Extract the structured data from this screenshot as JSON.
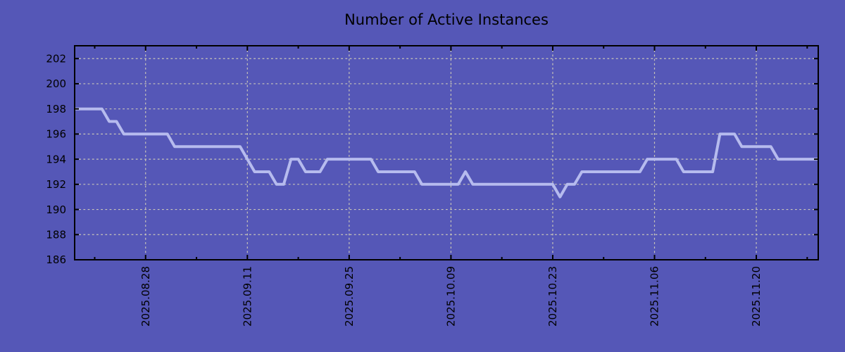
{
  "chart_data": {
    "type": "line",
    "title": "Number of Active Instances",
    "xlabel": "",
    "ylabel": "",
    "legend_position": "none",
    "grid": "dashed, light gray, at labeled ticks",
    "ylim": [
      186,
      203
    ],
    "y_tick_labels": [
      "202",
      "200",
      "198",
      "196",
      "194",
      "192",
      "190",
      "188",
      "186"
    ],
    "x_tick_labels": [
      "2025.08.28",
      "2025.09.11",
      "2025.09.25",
      "2025.10.09",
      "2025.10.23",
      "2025.11.06",
      "2025.11.20"
    ],
    "x_cadence": "daily",
    "first_tick_date": "2025-08-21",
    "tick_interval_days": 7,
    "label_interval_days": 14,
    "colors": {
      "background": "#5557b7",
      "line": "#b6bbee",
      "grid": "#c9c6b8",
      "axis": "#000000",
      "text": "#000000"
    },
    "dates": [
      "2025-08-18",
      "2025-08-19",
      "2025-08-20",
      "2025-08-21",
      "2025-08-22",
      "2025-08-23",
      "2025-08-24",
      "2025-08-25",
      "2025-08-26",
      "2025-08-27",
      "2025-08-28",
      "2025-08-29",
      "2025-08-30",
      "2025-08-31",
      "2025-09-01",
      "2025-09-02",
      "2025-09-03",
      "2025-09-04",
      "2025-09-05",
      "2025-09-06",
      "2025-09-07",
      "2025-09-08",
      "2025-09-09",
      "2025-09-10",
      "2025-09-11",
      "2025-09-12",
      "2025-09-13",
      "2025-09-14",
      "2025-09-15",
      "2025-09-16",
      "2025-09-17",
      "2025-09-18",
      "2025-09-19",
      "2025-09-20",
      "2025-09-21",
      "2025-09-22",
      "2025-09-23",
      "2025-09-24",
      "2025-09-25",
      "2025-09-26",
      "2025-09-27",
      "2025-09-28",
      "2025-09-29",
      "2025-09-30",
      "2025-10-01",
      "2025-10-02",
      "2025-10-03",
      "2025-10-04",
      "2025-10-05",
      "2025-10-06",
      "2025-10-07",
      "2025-10-08",
      "2025-10-09",
      "2025-10-10",
      "2025-10-11",
      "2025-10-12",
      "2025-10-13",
      "2025-10-14",
      "2025-10-15",
      "2025-10-16",
      "2025-10-17",
      "2025-10-18",
      "2025-10-19",
      "2025-10-20",
      "2025-10-21",
      "2025-10-22",
      "2025-10-23",
      "2025-10-24",
      "2025-10-25",
      "2025-10-26",
      "2025-10-27",
      "2025-10-28",
      "2025-10-29",
      "2025-10-30",
      "2025-10-31",
      "2025-11-01",
      "2025-11-02",
      "2025-11-03",
      "2025-11-04",
      "2025-11-05",
      "2025-11-06",
      "2025-11-07",
      "2025-11-08",
      "2025-11-09",
      "2025-11-10",
      "2025-11-11",
      "2025-11-12",
      "2025-11-13",
      "2025-11-14",
      "2025-11-15",
      "2025-11-16",
      "2025-11-17",
      "2025-11-18",
      "2025-11-19",
      "2025-11-20",
      "2025-11-21",
      "2025-11-22",
      "2025-11-23",
      "2025-11-24",
      "2025-11-25",
      "2025-11-26",
      "2025-11-27",
      "2025-11-28",
      "2025-11-29"
    ],
    "values": [
      198,
      198,
      198,
      198,
      198,
      197,
      197,
      196,
      196,
      196,
      196,
      196,
      196,
      196,
      195,
      195,
      195,
      195,
      195,
      195,
      195,
      195,
      195,
      195,
      194,
      193,
      193,
      193,
      192,
      192,
      194,
      194,
      193,
      193,
      193,
      194,
      194,
      194,
      194,
      194,
      194,
      194,
      193,
      193,
      193,
      193,
      193,
      193,
      192,
      192,
      192,
      192,
      192,
      192,
      193,
      192,
      192,
      192,
      192,
      192,
      192,
      192,
      192,
      192,
      192,
      192,
      192,
      191,
      192,
      192,
      193,
      193,
      193,
      193,
      193,
      193,
      193,
      193,
      193,
      194,
      194,
      194,
      194,
      194,
      193,
      193,
      193,
      193,
      193,
      196,
      196,
      196,
      195,
      195,
      195,
      195,
      195,
      194,
      194,
      194,
      194,
      194,
      194,
      194
    ]
  }
}
